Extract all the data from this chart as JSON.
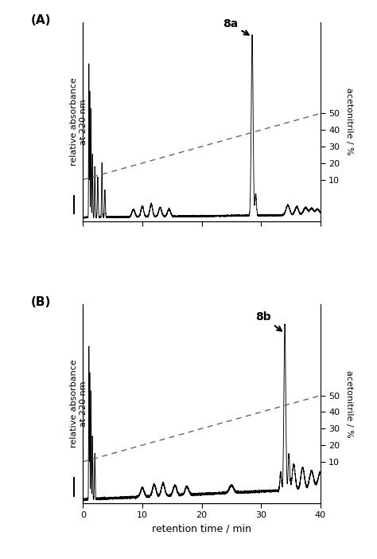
{
  "title_A": "(A)",
  "title_B": "(B)",
  "xlabel": "retention time / min",
  "ylabel_left": "relative absorbance\nat 220 nm",
  "ylabel_right": "acetonitrile / %",
  "xlim": [
    0,
    40
  ],
  "xticks": [
    0,
    10,
    20,
    30,
    40
  ],
  "yticks_right": [
    10,
    20,
    30,
    40,
    50
  ],
  "label_8a": "8a",
  "label_8b": "8b",
  "figsize": [
    4.74,
    7.02
  ],
  "dpi": 100,
  "background_color": "#ffffff",
  "line_color": "#000000",
  "dashed_color": "#666666"
}
